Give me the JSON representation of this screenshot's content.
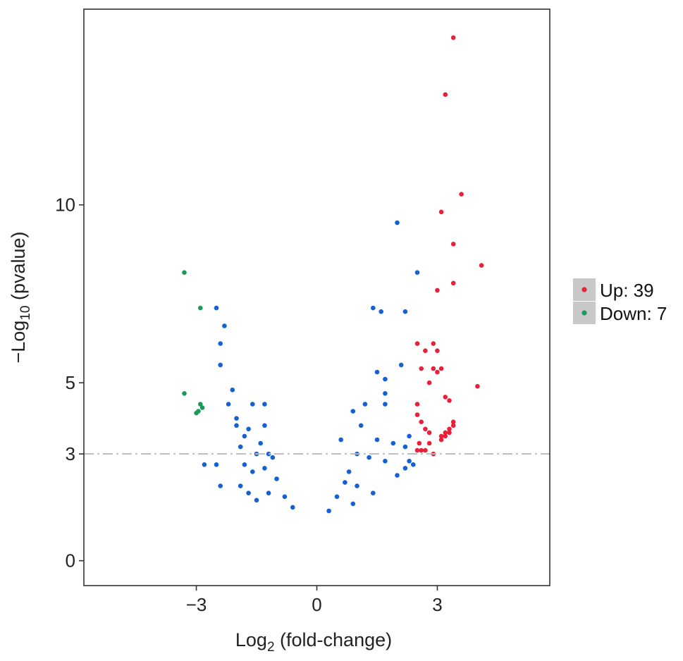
{
  "chart_data": {
    "type": "scatter",
    "title": "",
    "xlabel": {
      "main": "Log",
      "sub": "2",
      "rest": " (fold-change)"
    },
    "ylabel": {
      "prefix": "−Log",
      "sub": "10",
      "rest": " (pvalue)"
    },
    "xlim": [
      -5.8,
      5.8
    ],
    "ylim": [
      -0.7,
      15.5
    ],
    "xticks": [
      {
        "v": -3,
        "label": "−3"
      },
      {
        "v": 0,
        "label": "0"
      },
      {
        "v": 3,
        "label": "3"
      }
    ],
    "yticks": [
      {
        "v": 0,
        "label": "0"
      },
      {
        "v": 3,
        "label": "3"
      },
      {
        "v": 5,
        "label": "5"
      },
      {
        "v": 10,
        "label": "10"
      }
    ],
    "threshold_y": 3,
    "grid": false,
    "legend_position": "right",
    "colors": {
      "up": "#e8203a",
      "down": "#1a9a5a",
      "ns": "#1560d4",
      "threshold": "#bbbbbb",
      "legend_key": "#c8c8c8",
      "frame": "#333333"
    },
    "legend": [
      {
        "label": "Up: 39",
        "color": "#e8203a"
      },
      {
        "label": "Down: 7",
        "color": "#1a9a5a"
      }
    ],
    "series": [
      {
        "name": "Up: 39",
        "color": "#e8203a",
        "points": [
          [
            3.4,
            14.7
          ],
          [
            3.2,
            13.1
          ],
          [
            3.6,
            10.3
          ],
          [
            3.1,
            9.8
          ],
          [
            3.4,
            8.9
          ],
          [
            4.1,
            8.3
          ],
          [
            3.4,
            7.8
          ],
          [
            3.0,
            7.6
          ],
          [
            2.5,
            6.1
          ],
          [
            2.9,
            6.1
          ],
          [
            2.7,
            5.9
          ],
          [
            3.0,
            5.9
          ],
          [
            2.6,
            5.4
          ],
          [
            2.9,
            5.4
          ],
          [
            3.0,
            5.3
          ],
          [
            3.1,
            5.4
          ],
          [
            2.8,
            5.0
          ],
          [
            3.2,
            4.6
          ],
          [
            3.3,
            4.5
          ],
          [
            4.0,
            4.9
          ],
          [
            2.5,
            4.4
          ],
          [
            2.5,
            4.1
          ],
          [
            2.6,
            3.9
          ],
          [
            3.4,
            3.9
          ],
          [
            3.4,
            3.8
          ],
          [
            3.3,
            3.7
          ],
          [
            2.7,
            3.7
          ],
          [
            2.8,
            3.6
          ],
          [
            3.2,
            3.6
          ],
          [
            3.1,
            3.5
          ],
          [
            3.2,
            3.5
          ],
          [
            3.3,
            3.6
          ],
          [
            3.1,
            3.4
          ],
          [
            2.8,
            3.3
          ],
          [
            2.6,
            3.1
          ],
          [
            2.7,
            3.1
          ],
          [
            2.5,
            3.1
          ],
          [
            2.9,
            3.0
          ],
          [
            2.55,
            3.3
          ]
        ]
      },
      {
        "name": "Down: 7",
        "color": "#1a9a5a",
        "points": [
          [
            -3.3,
            8.1
          ],
          [
            -2.9,
            7.1
          ],
          [
            -3.3,
            4.7
          ],
          [
            -2.9,
            4.4
          ],
          [
            -2.85,
            4.3
          ],
          [
            -2.95,
            4.2
          ],
          [
            -3.0,
            4.15
          ]
        ]
      },
      {
        "name": "",
        "color": "#1560d4",
        "points": [
          [
            -2.5,
            7.1
          ],
          [
            -2.3,
            6.6
          ],
          [
            -2.4,
            6.1
          ],
          [
            -2.4,
            5.5
          ],
          [
            -2.1,
            4.8
          ],
          [
            -1.6,
            4.4
          ],
          [
            -1.3,
            4.4
          ],
          [
            -2.2,
            4.4
          ],
          [
            -2.0,
            4.0
          ],
          [
            -2.0,
            3.8
          ],
          [
            -1.7,
            3.7
          ],
          [
            -1.3,
            3.8
          ],
          [
            -1.8,
            3.5
          ],
          [
            -1.4,
            3.3
          ],
          [
            -1.9,
            3.2
          ],
          [
            -1.2,
            3.0
          ],
          [
            -1.5,
            3.0
          ],
          [
            -1.1,
            2.9
          ],
          [
            -2.8,
            2.7
          ],
          [
            -2.5,
            2.7
          ],
          [
            -1.8,
            2.7
          ],
          [
            -1.3,
            2.6
          ],
          [
            -1.6,
            2.5
          ],
          [
            -2.4,
            2.1
          ],
          [
            -1.9,
            2.1
          ],
          [
            -1.0,
            2.3
          ],
          [
            -0.8,
            1.8
          ],
          [
            -1.2,
            1.9
          ],
          [
            -0.6,
            1.5
          ],
          [
            -1.5,
            1.7
          ],
          [
            -1.7,
            1.9
          ],
          [
            2.0,
            9.5
          ],
          [
            2.5,
            8.1
          ],
          [
            1.4,
            7.1
          ],
          [
            1.6,
            7.0
          ],
          [
            2.2,
            7.0
          ],
          [
            2.1,
            5.5
          ],
          [
            1.5,
            5.3
          ],
          [
            1.7,
            5.1
          ],
          [
            1.7,
            4.7
          ],
          [
            1.2,
            4.4
          ],
          [
            1.7,
            4.4
          ],
          [
            0.9,
            4.2
          ],
          [
            1.1,
            3.8
          ],
          [
            2.3,
            3.5
          ],
          [
            1.5,
            3.4
          ],
          [
            1.9,
            3.3
          ],
          [
            2.2,
            3.2
          ],
          [
            1.0,
            3.0
          ],
          [
            0.6,
            3.4
          ],
          [
            1.3,
            2.9
          ],
          [
            1.7,
            2.8
          ],
          [
            0.8,
            2.5
          ],
          [
            2.3,
            2.8
          ],
          [
            0.7,
            2.2
          ],
          [
            1.0,
            2.1
          ],
          [
            0.5,
            1.8
          ],
          [
            1.4,
            1.9
          ],
          [
            0.3,
            1.4
          ],
          [
            0.9,
            1.6
          ],
          [
            2.4,
            2.7
          ],
          [
            2.2,
            2.6
          ],
          [
            2.0,
            2.4
          ]
        ]
      }
    ]
  }
}
